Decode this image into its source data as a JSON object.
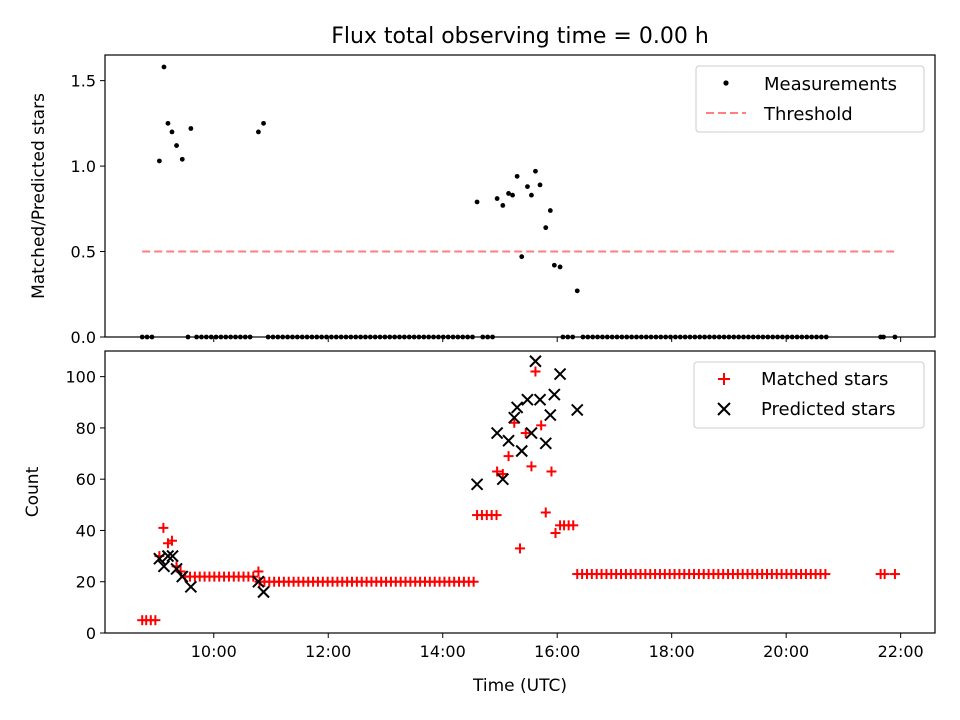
{
  "chart_data": [
    {
      "type": "scatter",
      "title": "Flux total observing time = 0.00 h",
      "ylabel": "Matched/Predicted stars",
      "xlabel": "",
      "ylim": [
        0,
        1.65
      ],
      "xlim": [
        8.1,
        22.6
      ],
      "yticks": [
        0,
        0.5,
        1.0,
        1.5
      ],
      "ytick_labels": [
        "0.0",
        "0.5",
        "1.0",
        "1.5"
      ],
      "threshold": 0.5,
      "threshold_x": [
        8.75,
        21.9
      ],
      "legend": {
        "position": "top-right",
        "entries": [
          "Measurements",
          "Threshold"
        ]
      },
      "colors": {
        "measurements": "#000000",
        "threshold": "#ff7f7f"
      },
      "series": [
        {
          "name": "Measurements",
          "points": [
            [
              9.05,
              1.03
            ],
            [
              9.13,
              1.58
            ],
            [
              9.2,
              1.25
            ],
            [
              9.27,
              1.2
            ],
            [
              9.35,
              1.12
            ],
            [
              9.45,
              1.04
            ],
            [
              9.6,
              1.22
            ],
            [
              10.78,
              1.2
            ],
            [
              10.87,
              1.25
            ],
            [
              14.6,
              0.79
            ],
            [
              14.95,
              0.81
            ],
            [
              15.05,
              0.77
            ],
            [
              15.15,
              0.84
            ],
            [
              15.22,
              0.83
            ],
            [
              15.3,
              0.94
            ],
            [
              15.38,
              0.47
            ],
            [
              15.48,
              0.88
            ],
            [
              15.55,
              0.83
            ],
            [
              15.62,
              0.97
            ],
            [
              15.7,
              0.89
            ],
            [
              15.8,
              0.64
            ],
            [
              15.88,
              0.74
            ],
            [
              15.95,
              0.42
            ],
            [
              16.05,
              0.41
            ],
            [
              16.35,
              0.27
            ]
          ],
          "zero_ranges": [
            [
              8.75,
              8.98
            ],
            [
              9.55,
              9.55
            ],
            [
              9.7,
              10.7
            ],
            [
              10.95,
              14.55
            ],
            [
              14.7,
              14.95
            ],
            [
              16.1,
              16.3
            ],
            [
              16.45,
              20.7
            ]
          ],
          "zero_points": [
            21.65,
            21.7,
            21.9
          ]
        }
      ]
    },
    {
      "type": "scatter",
      "title": "",
      "xlabel": "Time (UTC)",
      "ylabel": "Count",
      "ylim": [
        0,
        110
      ],
      "xlim": [
        8.1,
        22.6
      ],
      "yticks": [
        0,
        20,
        40,
        60,
        80,
        100
      ],
      "ytick_labels": [
        "0",
        "20",
        "40",
        "60",
        "80",
        "100"
      ],
      "xticks": [
        10,
        12,
        14,
        16,
        18,
        20,
        22
      ],
      "xtick_labels": [
        "10:00",
        "12:00",
        "14:00",
        "16:00",
        "18:00",
        "20:00",
        "22:00"
      ],
      "legend": {
        "position": "top-right",
        "entries": [
          "Matched stars",
          "Predicted stars"
        ]
      },
      "colors": {
        "matched": "#ff0000",
        "predicted": "#000000"
      },
      "series": [
        {
          "name": "Matched stars",
          "points": [
            [
              8.75,
              5
            ],
            [
              8.82,
              5
            ],
            [
              8.9,
              5
            ],
            [
              8.98,
              5
            ],
            [
              9.05,
              30
            ],
            [
              9.12,
              41
            ],
            [
              9.2,
              35
            ],
            [
              9.27,
              36
            ],
            [
              9.35,
              26
            ],
            [
              9.42,
              24
            ],
            [
              14.95,
              63
            ],
            [
              15.05,
              62
            ],
            [
              15.15,
              69
            ],
            [
              15.25,
              82
            ],
            [
              15.35,
              33
            ],
            [
              15.45,
              78
            ],
            [
              15.55,
              65
            ],
            [
              15.62,
              102
            ],
            [
              15.72,
              81
            ],
            [
              15.8,
              47
            ],
            [
              15.9,
              63
            ],
            [
              15.97,
              39
            ],
            [
              16.05,
              42
            ],
            [
              16.12,
              42
            ],
            [
              16.2,
              42
            ],
            [
              16.28,
              42
            ],
            [
              10.78,
              24
            ]
          ],
          "constant_ranges": [
            {
              "from": 9.5,
              "to": 10.7,
              "value": 22
            },
            {
              "from": 10.8,
              "to": 14.55,
              "value": 20
            },
            {
              "from": 14.6,
              "to": 14.95,
              "value": 46
            },
            {
              "from": 16.35,
              "to": 20.7,
              "value": 23
            }
          ],
          "extra_points": [
            [
              21.65,
              23
            ],
            [
              21.72,
              23
            ],
            [
              21.9,
              23
            ]
          ]
        },
        {
          "name": "Predicted stars",
          "points": [
            [
              9.05,
              29
            ],
            [
              9.13,
              26
            ],
            [
              9.2,
              30
            ],
            [
              9.28,
              30
            ],
            [
              9.35,
              25
            ],
            [
              9.45,
              22
            ],
            [
              9.6,
              18
            ],
            [
              10.78,
              20
            ],
            [
              10.87,
              16
            ],
            [
              14.6,
              58
            ],
            [
              14.95,
              78
            ],
            [
              15.05,
              60
            ],
            [
              15.15,
              75
            ],
            [
              15.25,
              84
            ],
            [
              15.3,
              88
            ],
            [
              15.38,
              71
            ],
            [
              15.48,
              91
            ],
            [
              15.55,
              78
            ],
            [
              15.62,
              106
            ],
            [
              15.7,
              91
            ],
            [
              15.8,
              74
            ],
            [
              15.88,
              85
            ],
            [
              15.95,
              93
            ],
            [
              16.05,
              101
            ],
            [
              16.35,
              87
            ]
          ]
        }
      ]
    }
  ]
}
